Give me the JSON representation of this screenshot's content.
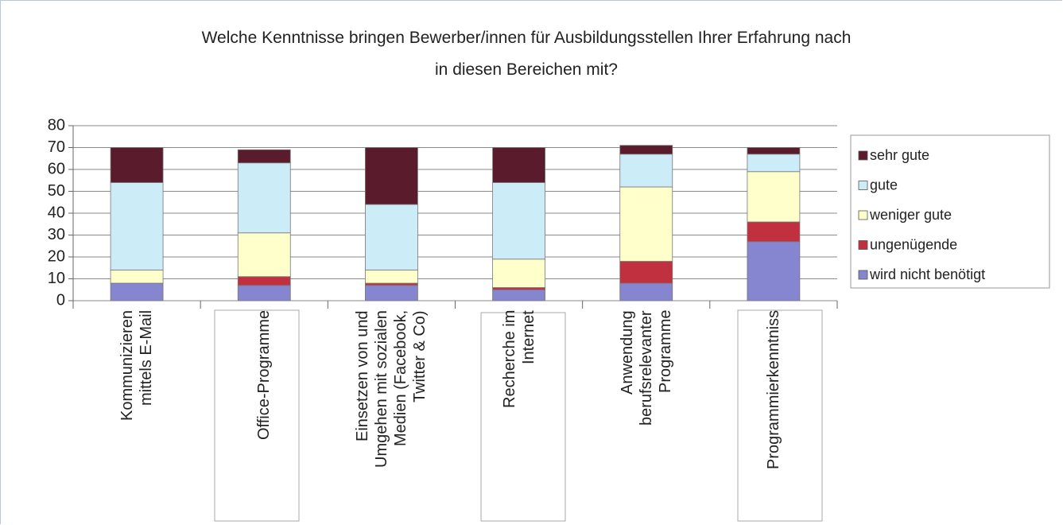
{
  "chart_data": {
    "type": "stacked_bar",
    "title": "Welche Kenntnisse bringen Bewerber/innen für Ausbildungsstellen Ihrer Erfahrung nach\nin diesen Bereichen mit?",
    "categories": [
      "Kommunizieren\nmittels E-Mail",
      "Office-Programme",
      "Einsetzen von und\nUmgehen mit sozialen\nMedien (Facebook,\nTwitter & Co)",
      "Recherche im\nInternet",
      "Anwendung\nberufsrelevanter\nProgramme",
      "Programmierkenntniss"
    ],
    "series": [
      {
        "name": "wird nicht benötigt",
        "color": "#8585d0",
        "values": [
          8,
          7,
          7,
          5,
          8,
          27
        ]
      },
      {
        "name": "ungenügende",
        "color": "#c0303f",
        "values": [
          0,
          4,
          1,
          1,
          10,
          9
        ]
      },
      {
        "name": "weniger gute",
        "color": "#ffffcc",
        "values": [
          6,
          20,
          6,
          13,
          34,
          23
        ]
      },
      {
        "name": "gute",
        "color": "#ccecf8",
        "values": [
          40,
          32,
          30,
          35,
          15,
          8
        ]
      },
      {
        "name": "sehr gute",
        "color": "#5a1c2c",
        "values": [
          16,
          6,
          26,
          16,
          4,
          3
        ]
      }
    ],
    "ylim": [
      0,
      80
    ],
    "yticks": [
      0,
      10,
      20,
      30,
      40,
      50,
      60,
      70,
      80
    ],
    "grid": true,
    "legend": "right"
  }
}
